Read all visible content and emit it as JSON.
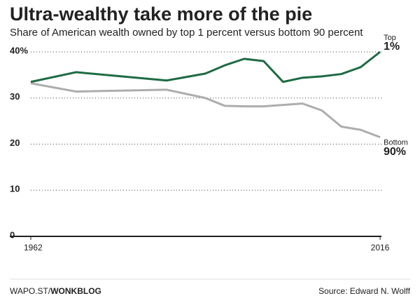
{
  "chart_data": {
    "type": "line",
    "title": "Ultra-wealthy take more of the pie",
    "subtitle": "Share of American wealth owned by top 1 percent versus bottom 90 percent",
    "x": [
      1962,
      1969,
      1983,
      1989,
      1992,
      1995,
      1998,
      2001,
      2004,
      2007,
      2010,
      2013,
      2016
    ],
    "xlim": [
      1962,
      2016
    ],
    "xticks": [
      1962,
      2016
    ],
    "ylim": [
      0,
      40
    ],
    "yticks": [
      0,
      10,
      20,
      30,
      {
        "value": 40,
        "label": "40%"
      }
    ],
    "grid": true,
    "series": [
      {
        "label": [
          "Top",
          "1%"
        ],
        "color": "#1d6b44",
        "values": [
          33.5,
          35.6,
          33.8,
          35.3,
          37.1,
          38.5,
          38.0,
          33.5,
          34.4,
          34.7,
          35.2,
          36.7,
          40.0
        ]
      },
      {
        "label": [
          "Bottom",
          "90%"
        ],
        "color": "#adadad",
        "values": [
          33.2,
          31.4,
          31.8,
          30.0,
          28.3,
          28.2,
          28.2,
          28.5,
          28.8,
          27.3,
          23.8,
          23.1,
          21.5
        ]
      }
    ],
    "credit": [
      "WAPO.ST/",
      "WONKBLOG"
    ],
    "source": "Source: Edward N. Wolff"
  }
}
